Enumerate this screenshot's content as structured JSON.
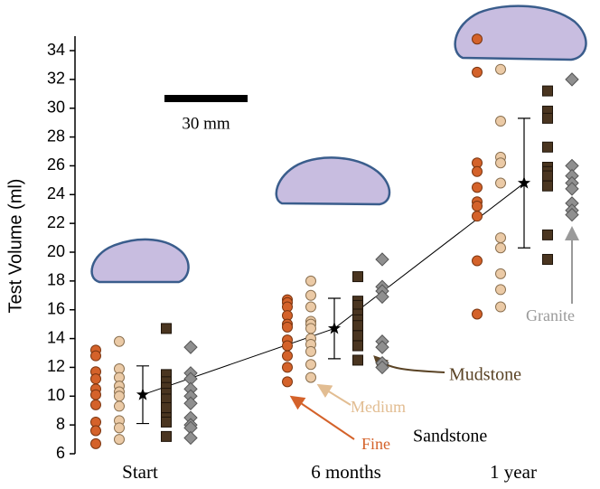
{
  "chart_data": {
    "type": "strip",
    "y_label": "Test Volume (ml)",
    "categories": [
      "Start",
      "6 months",
      "1 year"
    ],
    "ylim": [
      6,
      35
    ],
    "yticks": [
      6,
      8,
      10,
      12,
      14,
      16,
      18,
      20,
      22,
      24,
      26,
      28,
      30,
      32,
      34
    ],
    "series": [
      {
        "name": "Fine",
        "color": "#d4622a",
        "marker": "circle",
        "values": [
          [
            13.2,
            12.8,
            11.7,
            11.2,
            10.5,
            10.1,
            9.4,
            8.2,
            7.6,
            6.7
          ],
          [
            16.7,
            16.5,
            16.2,
            15.6,
            15.0,
            14.8,
            13.9,
            13.5,
            12.8,
            12.0,
            11.0
          ],
          [
            34.8,
            32.5,
            26.2,
            25.6,
            24.5,
            23.5,
            23.2,
            22.5,
            19.4,
            15.7
          ]
        ]
      },
      {
        "name": "Medium",
        "color": "#ebcaa6",
        "marker": "circle",
        "values": [
          [
            13.8,
            11.9,
            11.3,
            10.7,
            10.3,
            10.0,
            9.3,
            8.3,
            7.8,
            7.0
          ],
          [
            18.0,
            17.0,
            16.2,
            15.2,
            15.0,
            14.7,
            14.0,
            13.6,
            13.1,
            12.2,
            11.3
          ],
          [
            32.7,
            29.1,
            26.6,
            26.2,
            24.8,
            21.0,
            20.3,
            18.5,
            17.4,
            16.2
          ]
        ]
      },
      {
        "name": "Mudstone",
        "color": "#4a3520",
        "marker": "square",
        "values": [
          [
            14.7,
            11.5,
            11.0,
            10.6,
            10.2,
            9.8,
            9.2,
            8.5,
            8.2,
            7.2
          ],
          [
            18.3,
            16.6,
            16.3,
            15.7,
            15.3,
            14.9,
            14.2,
            13.5,
            12.5
          ],
          [
            31.2,
            29.8,
            29.3,
            27.3,
            25.9,
            25.6,
            25.3,
            24.6,
            21.2,
            19.5
          ]
        ]
      },
      {
        "name": "Granite",
        "color": "#8f8f8f",
        "marker": "diamond",
        "values": [
          [
            13.4,
            11.6,
            11.2,
            10.5,
            10.0,
            9.5,
            8.5,
            8.0,
            7.8,
            7.1
          ],
          [
            19.5,
            17.6,
            17.3,
            16.9,
            13.8,
            13.4,
            12.3,
            12.0
          ],
          [
            32.0,
            26.0,
            25.3,
            24.8,
            24.4,
            23.4,
            22.9,
            22.6
          ]
        ]
      }
    ],
    "mean": {
      "values": [
        10.1,
        14.7,
        24.8
      ],
      "errors": [
        2.0,
        2.1,
        4.5
      ],
      "color": "#000000"
    },
    "annotations": {
      "scale_bar": "30 mm",
      "sandstone": "Sandstone"
    }
  }
}
